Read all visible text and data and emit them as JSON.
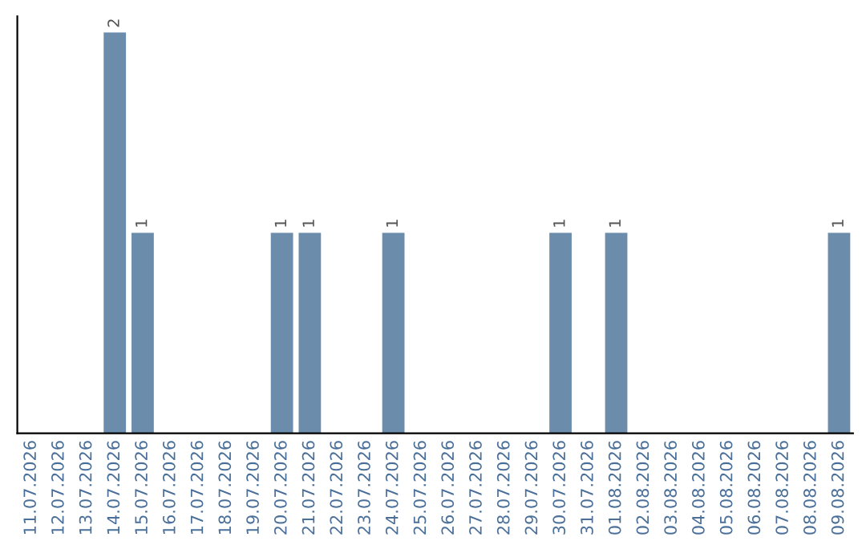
{
  "chart_data": {
    "type": "bar",
    "categories": [
      "11.07.2026",
      "12.07.2026",
      "13.07.2026",
      "14.07.2026",
      "15.07.2026",
      "16.07.2026",
      "17.07.2026",
      "18.07.2026",
      "19.07.2026",
      "20.07.2026",
      "21.07.2026",
      "22.07.2026",
      "23.07.2026",
      "24.07.2026",
      "25.07.2026",
      "26.07.2026",
      "27.07.2026",
      "28.07.2026",
      "29.07.2026",
      "30.07.2026",
      "31.07.2026",
      "01.08.2026",
      "02.08.2026",
      "03.08.2026",
      "04.08.2026",
      "05.08.2026",
      "06.08.2026",
      "07.08.2026",
      "08.08.2026",
      "09.08.2026"
    ],
    "values": [
      0,
      0,
      0,
      2,
      1,
      0,
      0,
      0,
      0,
      1,
      1,
      0,
      0,
      1,
      0,
      0,
      0,
      0,
      0,
      1,
      0,
      1,
      0,
      0,
      0,
      0,
      0,
      0,
      0,
      1
    ],
    "value_labels": [
      null,
      null,
      null,
      "2",
      "1",
      null,
      null,
      null,
      null,
      "1",
      "1",
      null,
      null,
      "1",
      null,
      null,
      null,
      null,
      null,
      "1",
      null,
      "1",
      null,
      null,
      null,
      null,
      null,
      null,
      null,
      "1"
    ],
    "color": "#6b8cab",
    "grid": false,
    "legend": false
  }
}
